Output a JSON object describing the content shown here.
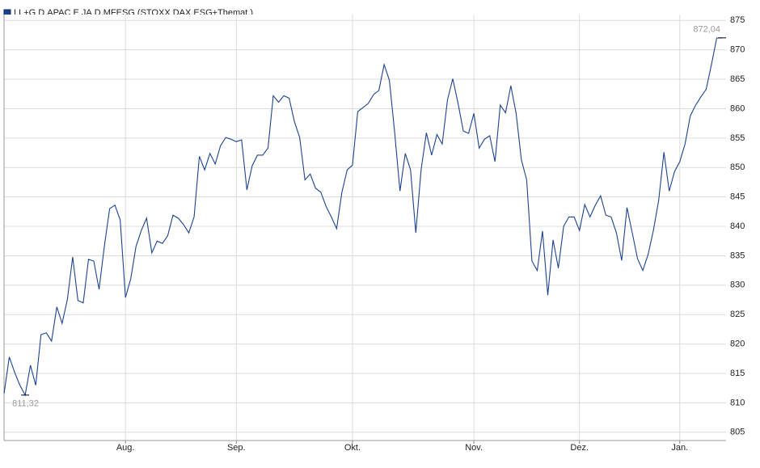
{
  "chart_data": {
    "type": "line",
    "title": "I.L+G D.APAC E.JA.D.MFESG (STOXX DAX ESG+Themat.)",
    "categories": [
      null,
      null,
      null,
      null,
      null,
      null,
      null,
      null,
      null,
      null,
      null,
      null,
      null,
      null,
      null,
      null,
      null,
      null,
      null,
      null,
      null,
      null,
      null,
      "Aug.",
      null,
      null,
      null,
      null,
      null,
      null,
      null,
      null,
      null,
      null,
      null,
      null,
      null,
      null,
      null,
      null,
      null,
      null,
      null,
      null,
      "Sep.",
      null,
      null,
      null,
      null,
      null,
      null,
      null,
      null,
      null,
      null,
      null,
      null,
      null,
      null,
      null,
      null,
      null,
      null,
      null,
      null,
      null,
      "Okt.",
      null,
      null,
      null,
      null,
      null,
      null,
      null,
      null,
      null,
      null,
      null,
      null,
      null,
      null,
      null,
      null,
      null,
      null,
      null,
      null,
      null,
      null,
      "Nov.",
      null,
      null,
      null,
      null,
      null,
      null,
      null,
      null,
      null,
      null,
      null,
      null,
      null,
      null,
      null,
      null,
      null,
      null,
      null,
      "Dez.",
      null,
      null,
      null,
      null,
      null,
      null,
      null,
      null,
      null,
      null,
      null,
      null,
      null,
      null,
      null,
      null,
      null,
      null,
      "Jan.",
      null,
      null,
      null,
      null,
      null,
      null,
      null,
      null
    ],
    "series": [
      {
        "name": "I.L+G D.APAC E.JA.D.MFESG (STOXX DAX ESG+Themat.)",
        "color": "#1c4392",
        "values": [
          811.6,
          817.8,
          815.2,
          813.0,
          811.32,
          816.4,
          813.0,
          821.6,
          821.9,
          820.5,
          826.3,
          823.5,
          827.6,
          834.8,
          827.4,
          827.0,
          834.4,
          834.1,
          829.3,
          836.6,
          843.0,
          843.6,
          841.1,
          827.9,
          831.1,
          836.6,
          839.3,
          841.4,
          835.5,
          837.5,
          837.1,
          838.4,
          841.9,
          841.4,
          840.3,
          838.9,
          841.6,
          851.9,
          849.6,
          852.4,
          850.6,
          853.7,
          855.1,
          854.8,
          854.4,
          854.7,
          846.2,
          850.3,
          852.1,
          852.1,
          853.3,
          862.2,
          861.1,
          862.2,
          861.8,
          857.8,
          855.1,
          847.9,
          848.9,
          846.5,
          845.8,
          843.4,
          841.6,
          839.6,
          845.8,
          849.6,
          850.4,
          859.5,
          860.2,
          860.9,
          862.4,
          863.1,
          867.5,
          864.8,
          855.9,
          846.0,
          852.4,
          849.6,
          838.9,
          849.6,
          855.9,
          852.1,
          855.6,
          854.0,
          861.5,
          865.1,
          860.9,
          856.2,
          855.8,
          859.2,
          853.3,
          854.8,
          855.4,
          851.0,
          860.6,
          859.3,
          863.9,
          859.2,
          851.3,
          847.9,
          834.1,
          832.5,
          839.2,
          828.3,
          837.7,
          832.9,
          840.0,
          841.6,
          841.6,
          839.3,
          843.7,
          841.6,
          843.6,
          845.2,
          841.9,
          841.6,
          838.9,
          834.2,
          843.2,
          838.9,
          834.5,
          832.5,
          835.2,
          839.3,
          844.4,
          852.6,
          846.0,
          849.3,
          851.0,
          854.0,
          858.8,
          860.6,
          862.0,
          863.3,
          867.5,
          872.0,
          872.04
        ],
        "value_labels": [
          null,
          null,
          null,
          null,
          "811,32",
          null,
          null,
          null,
          null,
          null,
          null,
          null,
          null,
          null,
          null,
          null,
          null,
          null,
          null,
          null,
          null,
          null,
          null,
          null,
          null,
          null,
          null,
          null,
          null,
          null,
          null,
          null,
          null,
          null,
          null,
          null,
          null,
          null,
          null,
          null,
          null,
          null,
          null,
          null,
          null,
          null,
          null,
          null,
          null,
          null,
          null,
          null,
          null,
          null,
          null,
          null,
          null,
          null,
          null,
          null,
          null,
          null,
          null,
          null,
          null,
          null,
          null,
          null,
          null,
          null,
          null,
          null,
          null,
          null,
          null,
          null,
          null,
          null,
          null,
          null,
          null,
          null,
          null,
          null,
          null,
          null,
          null,
          null,
          null,
          null,
          null,
          null,
          null,
          null,
          null,
          null,
          null,
          null,
          null,
          null,
          null,
          null,
          null,
          null,
          null,
          null,
          null,
          null,
          null,
          null,
          null,
          null,
          null,
          null,
          null,
          null,
          null,
          null,
          null,
          null,
          null,
          null,
          null,
          null,
          null,
          null,
          null,
          null,
          null,
          null,
          null,
          null,
          null,
          null,
          null,
          null,
          "872,04"
        ]
      }
    ],
    "ylim": [
      803.6,
      876
    ],
    "yticks": [
      805,
      810,
      815,
      820,
      825,
      830,
      835,
      840,
      845,
      850,
      855,
      860,
      865,
      870,
      875
    ],
    "grid": true
  }
}
